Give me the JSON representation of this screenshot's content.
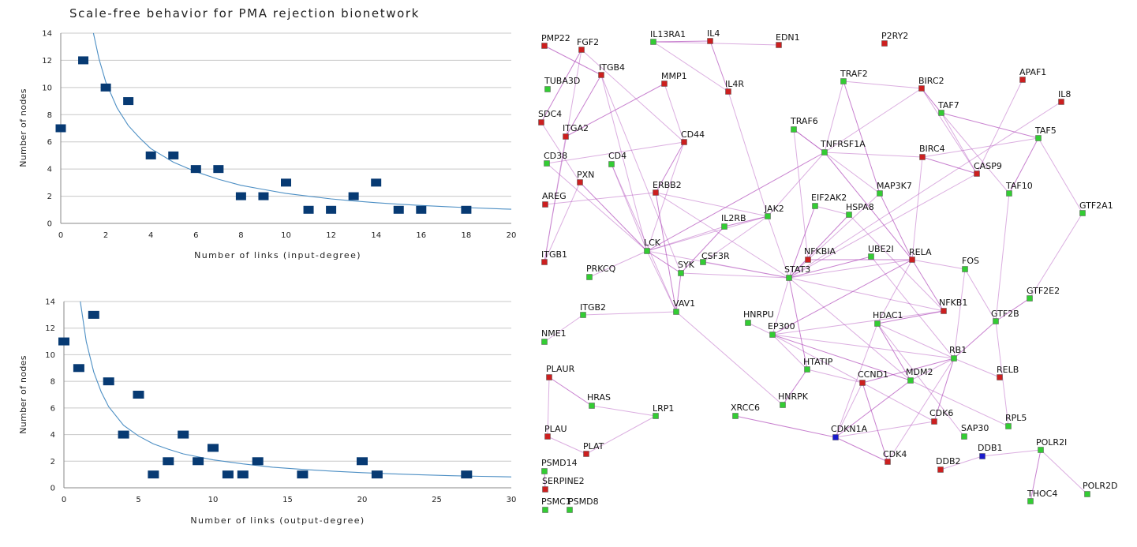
{
  "figure_title": "Scale-free behavior for PMA rejection bionetwork",
  "colors": {
    "point": "#073a73",
    "fit_line": "#4d8fc4",
    "grid": "#c8c8c8",
    "node_red": "#cc1f1f",
    "node_green": "#33cc33",
    "node_blue": "#1a1acc",
    "edge": "#b04cbb"
  },
  "chart_data": [
    {
      "type": "scatter",
      "xlabel": "Number of links (input-degree)",
      "ylabel": "Number of nodes",
      "xlim": [
        0,
        20
      ],
      "ylim": [
        0,
        14
      ],
      "xticks": [
        0,
        2,
        4,
        6,
        8,
        10,
        12,
        14,
        16,
        18,
        20
      ],
      "yticks": [
        0,
        2,
        4,
        6,
        8,
        10,
        12,
        14
      ],
      "grid": true,
      "points": [
        {
          "x": 0,
          "y": 7
        },
        {
          "x": 1,
          "y": 12
        },
        {
          "x": 2,
          "y": 10
        },
        {
          "x": 3,
          "y": 9
        },
        {
          "x": 4,
          "y": 5
        },
        {
          "x": 5,
          "y": 5
        },
        {
          "x": 6,
          "y": 4
        },
        {
          "x": 7,
          "y": 4
        },
        {
          "x": 8,
          "y": 2
        },
        {
          "x": 9,
          "y": 2
        },
        {
          "x": 10,
          "y": 3
        },
        {
          "x": 11,
          "y": 1
        },
        {
          "x": 12,
          "y": 1
        },
        {
          "x": 13,
          "y": 2
        },
        {
          "x": 14,
          "y": 3
        },
        {
          "x": 15,
          "y": 1
        },
        {
          "x": 16,
          "y": 1
        },
        {
          "x": 18,
          "y": 1
        }
      ],
      "fit_curve": [
        {
          "x": 1.45,
          "y": 14
        },
        {
          "x": 1.7,
          "y": 12.1
        },
        {
          "x": 2,
          "y": 10.4
        },
        {
          "x": 2.5,
          "y": 8.5
        },
        {
          "x": 3,
          "y": 7.2
        },
        {
          "x": 3.5,
          "y": 6.3
        },
        {
          "x": 4,
          "y": 5.5
        },
        {
          "x": 5,
          "y": 4.5
        },
        {
          "x": 6,
          "y": 3.8
        },
        {
          "x": 7,
          "y": 3.25
        },
        {
          "x": 8,
          "y": 2.8
        },
        {
          "x": 9,
          "y": 2.5
        },
        {
          "x": 10,
          "y": 2.2
        },
        {
          "x": 11,
          "y": 2.0
        },
        {
          "x": 12,
          "y": 1.8
        },
        {
          "x": 13,
          "y": 1.65
        },
        {
          "x": 14,
          "y": 1.52
        },
        {
          "x": 15,
          "y": 1.41
        },
        {
          "x": 16,
          "y": 1.32
        },
        {
          "x": 17,
          "y": 1.24
        },
        {
          "x": 18,
          "y": 1.16
        },
        {
          "x": 19,
          "y": 1.1
        },
        {
          "x": 20,
          "y": 1.04
        }
      ]
    },
    {
      "type": "scatter",
      "xlabel": "Number of links (output-degree)",
      "ylabel": "Number of nodes",
      "xlim": [
        0,
        30
      ],
      "ylim": [
        0,
        14
      ],
      "xticks": [
        0,
        5,
        10,
        15,
        20,
        25,
        30
      ],
      "yticks": [
        0,
        2,
        4,
        6,
        8,
        10,
        12,
        14
      ],
      "grid": true,
      "points": [
        {
          "x": 0,
          "y": 11
        },
        {
          "x": 1,
          "y": 9
        },
        {
          "x": 2,
          "y": 13
        },
        {
          "x": 3,
          "y": 8
        },
        {
          "x": 4,
          "y": 4
        },
        {
          "x": 5,
          "y": 7
        },
        {
          "x": 6,
          "y": 1
        },
        {
          "x": 7,
          "y": 2
        },
        {
          "x": 8,
          "y": 4
        },
        {
          "x": 9,
          "y": 2
        },
        {
          "x": 10,
          "y": 3
        },
        {
          "x": 11,
          "y": 1
        },
        {
          "x": 12,
          "y": 1
        },
        {
          "x": 13,
          "y": 2
        },
        {
          "x": 16,
          "y": 1
        },
        {
          "x": 20,
          "y": 2
        },
        {
          "x": 21,
          "y": 1
        },
        {
          "x": 27,
          "y": 1
        }
      ],
      "fit_curve": [
        {
          "x": 1.1,
          "y": 14
        },
        {
          "x": 1.5,
          "y": 11
        },
        {
          "x": 2,
          "y": 8.7
        },
        {
          "x": 2.5,
          "y": 7.2
        },
        {
          "x": 3,
          "y": 6.1
        },
        {
          "x": 4,
          "y": 4.7
        },
        {
          "x": 5,
          "y": 3.9
        },
        {
          "x": 6,
          "y": 3.3
        },
        {
          "x": 7,
          "y": 2.9
        },
        {
          "x": 8,
          "y": 2.55
        },
        {
          "x": 10,
          "y": 2.1
        },
        {
          "x": 12,
          "y": 1.8
        },
        {
          "x": 14,
          "y": 1.55
        },
        {
          "x": 16,
          "y": 1.38
        },
        {
          "x": 18,
          "y": 1.25
        },
        {
          "x": 20,
          "y": 1.14
        },
        {
          "x": 22,
          "y": 1.05
        },
        {
          "x": 24,
          "y": 0.97
        },
        {
          "x": 26,
          "y": 0.91
        },
        {
          "x": 28,
          "y": 0.86
        },
        {
          "x": 30,
          "y": 0.82
        }
      ]
    }
  ],
  "network": {
    "nodes": [
      {
        "id": "PMP22",
        "type": "red"
      },
      {
        "id": "FGF2",
        "type": "red"
      },
      {
        "id": "IL13RA1",
        "type": "green"
      },
      {
        "id": "IL4",
        "type": "red"
      },
      {
        "id": "EDN1",
        "type": "red"
      },
      {
        "id": "P2RY2",
        "type": "red"
      },
      {
        "id": "ITGB4",
        "type": "red"
      },
      {
        "id": "TUBA3D",
        "type": "green"
      },
      {
        "id": "MMP1",
        "type": "red"
      },
      {
        "id": "IL4R",
        "type": "red"
      },
      {
        "id": "TRAF2",
        "type": "green"
      },
      {
        "id": "BIRC2",
        "type": "red"
      },
      {
        "id": "APAF1",
        "type": "red"
      },
      {
        "id": "IL8",
        "type": "red"
      },
      {
        "id": "SDC4",
        "type": "red"
      },
      {
        "id": "ITGA2",
        "type": "red"
      },
      {
        "id": "TAF7",
        "type": "green"
      },
      {
        "id": "TRAF6",
        "type": "green"
      },
      {
        "id": "CD44",
        "type": "red"
      },
      {
        "id": "TAF5",
        "type": "green"
      },
      {
        "id": "TNFRSF1A",
        "type": "green"
      },
      {
        "id": "CD38",
        "type": "green"
      },
      {
        "id": "CD4",
        "type": "green"
      },
      {
        "id": "BIRC4",
        "type": "red"
      },
      {
        "id": "CASP9",
        "type": "red"
      },
      {
        "id": "PXN",
        "type": "red"
      },
      {
        "id": "ERBB2",
        "type": "red"
      },
      {
        "id": "MAP3K7",
        "type": "green"
      },
      {
        "id": "TAF10",
        "type": "green"
      },
      {
        "id": "AREG",
        "type": "red"
      },
      {
        "id": "EIF2AK2",
        "type": "green"
      },
      {
        "id": "JAK2",
        "type": "green"
      },
      {
        "id": "HSPA8",
        "type": "green"
      },
      {
        "id": "IL2RB",
        "type": "green"
      },
      {
        "id": "GTF2A1",
        "type": "green"
      },
      {
        "id": "ITGB1",
        "type": "red"
      },
      {
        "id": "LCK",
        "type": "green"
      },
      {
        "id": "NFKBIA",
        "type": "red"
      },
      {
        "id": "UBE2I",
        "type": "green"
      },
      {
        "id": "CSF3R",
        "type": "green"
      },
      {
        "id": "RELA",
        "type": "red"
      },
      {
        "id": "FOS",
        "type": "green"
      },
      {
        "id": "PRKCQ",
        "type": "green"
      },
      {
        "id": "SYK",
        "type": "green"
      },
      {
        "id": "STAT3",
        "type": "green"
      },
      {
        "id": "GTF2E2",
        "type": "green"
      },
      {
        "id": "VAV1",
        "type": "green"
      },
      {
        "id": "NFKB1",
        "type": "red"
      },
      {
        "id": "ITGB2",
        "type": "green"
      },
      {
        "id": "HNRPU",
        "type": "green"
      },
      {
        "id": "HDAC1",
        "type": "green"
      },
      {
        "id": "GTF2B",
        "type": "green"
      },
      {
        "id": "EP300",
        "type": "green"
      },
      {
        "id": "NME1",
        "type": "green"
      },
      {
        "id": "RB1",
        "type": "green"
      },
      {
        "id": "HTATIP",
        "type": "green"
      },
      {
        "id": "RELB",
        "type": "red"
      },
      {
        "id": "PLAUR",
        "type": "red"
      },
      {
        "id": "CCND1",
        "type": "red"
      },
      {
        "id": "MDM2",
        "type": "green"
      },
      {
        "id": "HRAS",
        "type": "green"
      },
      {
        "id": "HNRPK",
        "type": "green"
      },
      {
        "id": "LRP1",
        "type": "green"
      },
      {
        "id": "XRCC6",
        "type": "green"
      },
      {
        "id": "CDK6",
        "type": "red"
      },
      {
        "id": "RPL5",
        "type": "green"
      },
      {
        "id": "PLAU",
        "type": "red"
      },
      {
        "id": "CDKN1A",
        "type": "blue"
      },
      {
        "id": "SAP30",
        "type": "green"
      },
      {
        "id": "PLAT",
        "type": "red"
      },
      {
        "id": "POLR2I",
        "type": "green"
      },
      {
        "id": "DDB1",
        "type": "blue"
      },
      {
        "id": "CDK4",
        "type": "red"
      },
      {
        "id": "DDB2",
        "type": "red"
      },
      {
        "id": "PSMD14",
        "type": "green"
      },
      {
        "id": "SERPINE2",
        "type": "red"
      },
      {
        "id": "POLR2D",
        "type": "green"
      },
      {
        "id": "THOC4",
        "type": "green"
      },
      {
        "id": "PSMC1",
        "type": "green"
      },
      {
        "id": "PSMD8",
        "type": "green"
      }
    ],
    "edges": [
      [
        "PMP22",
        "ITGB4"
      ],
      [
        "FGF2",
        "ITGB1"
      ],
      [
        "FGF2",
        "CD44"
      ],
      [
        "IL13RA1",
        "IL4"
      ],
      [
        "IL13RA1",
        "IL4R"
      ],
      [
        "IL13RA1",
        "EDN1"
      ],
      [
        "IL4",
        "IL4R"
      ],
      [
        "IL4R",
        "JAK2"
      ],
      [
        "ITGB4",
        "LCK"
      ],
      [
        "ITGB4",
        "ITGA2"
      ],
      [
        "ITGB4",
        "SYK"
      ],
      [
        "MMP1",
        "CD44"
      ],
      [
        "MMP1",
        "ITGA2"
      ],
      [
        "TRAF2",
        "BIRC2"
      ],
      [
        "TRAF2",
        "TNFRSF1A"
      ],
      [
        "TRAF2",
        "MAP3K7"
      ],
      [
        "BIRC2",
        "TNFRSF1A"
      ],
      [
        "BIRC2",
        "CASP9"
      ],
      [
        "BIRC2",
        "TAF7"
      ],
      [
        "APAF1",
        "CASP9"
      ],
      [
        "IL8",
        "STAT3"
      ],
      [
        "TAF7",
        "TAF5"
      ],
      [
        "TAF7",
        "CASP9"
      ],
      [
        "TAF7",
        "TAF10"
      ],
      [
        "TRAF6",
        "TNFRSF1A"
      ],
      [
        "TRAF6",
        "MAP3K7"
      ],
      [
        "TRAF6",
        "NFKBIA"
      ],
      [
        "CD44",
        "ERBB2"
      ],
      [
        "CD44",
        "LCK"
      ],
      [
        "CD44",
        "CD38"
      ],
      [
        "TAF5",
        "TAF10"
      ],
      [
        "TAF5",
        "GTF2A1"
      ],
      [
        "TAF5",
        "BIRC4"
      ],
      [
        "TNFRSF1A",
        "LCK"
      ],
      [
        "TNFRSF1A",
        "JAK2"
      ],
      [
        "TNFRSF1A",
        "BIRC4"
      ],
      [
        "TNFRSF1A",
        "RELA"
      ],
      [
        "CD4",
        "LCK"
      ],
      [
        "CD4",
        "VAV1"
      ],
      [
        "BIRC4",
        "CASP9"
      ],
      [
        "BIRC4",
        "RELA"
      ],
      [
        "CASP9",
        "STAT3"
      ],
      [
        "PXN",
        "LCK"
      ],
      [
        "PXN",
        "ITGB1"
      ],
      [
        "ERBB2",
        "STAT3"
      ],
      [
        "ERBB2",
        "VAV1"
      ],
      [
        "ERBB2",
        "JAK2"
      ],
      [
        "MAP3K7",
        "NFKBIA"
      ],
      [
        "MAP3K7",
        "RELA"
      ],
      [
        "TAF10",
        "GTF2B"
      ],
      [
        "AREG",
        "ERBB2"
      ],
      [
        "EIF2AK2",
        "STAT3"
      ],
      [
        "EIF2AK2",
        "HSPA8"
      ],
      [
        "JAK2",
        "STAT3"
      ],
      [
        "JAK2",
        "IL2RB"
      ],
      [
        "JAK2",
        "CSF3R"
      ],
      [
        "JAK2",
        "LCK"
      ],
      [
        "HSPA8",
        "STAT3"
      ],
      [
        "HSPA8",
        "NFKB1"
      ],
      [
        "IL2RB",
        "LCK"
      ],
      [
        "IL2RB",
        "SYK"
      ],
      [
        "GTF2A1",
        "GTF2E2"
      ],
      [
        "LCK",
        "STAT3"
      ],
      [
        "LCK",
        "SYK"
      ],
      [
        "LCK",
        "VAV1"
      ],
      [
        "LCK",
        "PRKCQ"
      ],
      [
        "NFKBIA",
        "RELA"
      ],
      [
        "NFKBIA",
        "STAT3"
      ],
      [
        "UBE2I",
        "RB1"
      ],
      [
        "UBE2I",
        "STAT3"
      ],
      [
        "CSF3R",
        "STAT3"
      ],
      [
        "RELA",
        "FOS"
      ],
      [
        "RELA",
        "NFKB1"
      ],
      [
        "RELA",
        "STAT3"
      ],
      [
        "RELA",
        "HDAC1"
      ],
      [
        "RELA",
        "EP300"
      ],
      [
        "FOS",
        "RB1"
      ],
      [
        "FOS",
        "GTF2B"
      ],
      [
        "SYK",
        "VAV1"
      ],
      [
        "SYK",
        "STAT3"
      ],
      [
        "STAT3",
        "EP300"
      ],
      [
        "STAT3",
        "HTATIP"
      ],
      [
        "STAT3",
        "NFKB1"
      ],
      [
        "STAT3",
        "MDM2"
      ],
      [
        "GTF2E2",
        "GTF2B"
      ],
      [
        "VAV1",
        "ITGB2"
      ],
      [
        "VAV1",
        "HNRPK"
      ],
      [
        "NFKB1",
        "HDAC1"
      ],
      [
        "NFKB1",
        "EP300"
      ],
      [
        "HDAC1",
        "RB1"
      ],
      [
        "HDAC1",
        "MDM2"
      ],
      [
        "HDAC1",
        "CDKN1A"
      ],
      [
        "HDAC1",
        "SAP30"
      ],
      [
        "GTF2B",
        "RB1"
      ],
      [
        "EP300",
        "RB1"
      ],
      [
        "EP300",
        "HNRPU"
      ],
      [
        "EP300",
        "MDM2"
      ],
      [
        "EP300",
        "CCND1"
      ],
      [
        "EP300",
        "HTATIP"
      ],
      [
        "RB1",
        "CCND1"
      ],
      [
        "RB1",
        "MDM2"
      ],
      [
        "RB1",
        "CDK4"
      ],
      [
        "RB1",
        "CDK6"
      ],
      [
        "RB1",
        "RELB"
      ],
      [
        "HTATIP",
        "CCND1"
      ],
      [
        "CCND1",
        "CDK4"
      ],
      [
        "CCND1",
        "CDK6"
      ],
      [
        "CCND1",
        "CDKN1A"
      ],
      [
        "MDM2",
        "CDKN1A"
      ],
      [
        "MDM2",
        "RPL5"
      ],
      [
        "PLAUR",
        "PLAU"
      ],
      [
        "PLAUR",
        "HRAS"
      ],
      [
        "HRAS",
        "LRP1"
      ],
      [
        "LRP1",
        "PLAT"
      ],
      [
        "XRCC6",
        "CDKN1A"
      ],
      [
        "CDK6",
        "CDKN1A"
      ],
      [
        "PLAU",
        "PLAT"
      ],
      [
        "CDKN1A",
        "CDK4"
      ],
      [
        "POLR2I",
        "DDB1"
      ],
      [
        "POLR2I",
        "POLR2D"
      ],
      [
        "POLR2I",
        "THOC4"
      ],
      [
        "DDB1",
        "DDB2"
      ],
      [
        "NME1",
        "ITGB2"
      ],
      [
        "PSMD14",
        "SERPINE2"
      ],
      [
        "GTF2B",
        "RPL5"
      ],
      [
        "SDC4",
        "PXN"
      ],
      [
        "SDC4",
        "FGF2"
      ],
      [
        "CD38",
        "LCK"
      ],
      [
        "ITGA2",
        "ITGB1"
      ],
      [
        "HNRPK",
        "HTATIP"
      ]
    ]
  }
}
